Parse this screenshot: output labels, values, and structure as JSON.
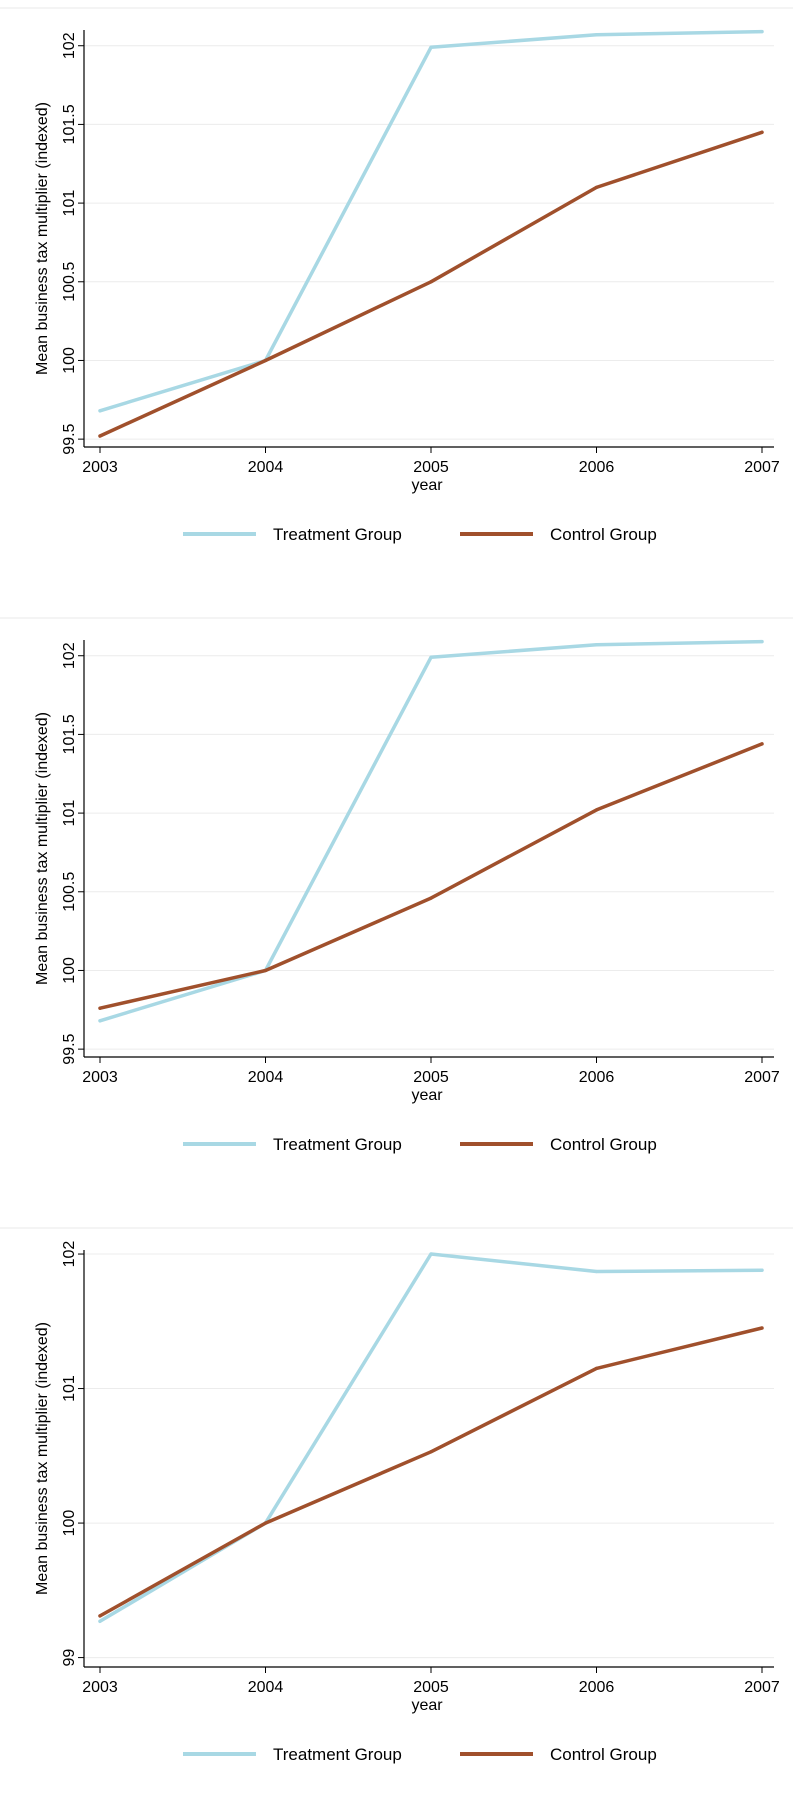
{
  "chart_data": [
    {
      "type": "line",
      "xlabel": "year",
      "ylabel": "Mean business tax multiplier (indexed)",
      "x": [
        2003,
        2004,
        2005,
        2006,
        2007
      ],
      "xticks": [
        "2003",
        "2004",
        "2005",
        "2006",
        "2007"
      ],
      "xlim": [
        2003,
        2007
      ],
      "yticks": [
        99.5,
        100,
        100.5,
        101,
        101.5,
        102
      ],
      "ytick_labels": [
        "99.5",
        "100",
        "100.5",
        "101",
        "101.5",
        "102"
      ],
      "ylim": [
        99.45,
        102.1
      ],
      "grid": true,
      "legend_position": "bottom",
      "series": [
        {
          "name": "Treatment Group",
          "color": "#a8d8e4",
          "values": [
            99.68,
            100.0,
            101.99,
            102.07,
            102.09
          ]
        },
        {
          "name": "Control Group",
          "color": "#a0502c",
          "values": [
            99.52,
            100.0,
            100.5,
            101.1,
            101.45
          ]
        }
      ]
    },
    {
      "type": "line",
      "xlabel": "year",
      "ylabel": "Mean business tax multiplier (indexed)",
      "x": [
        2003,
        2004,
        2005,
        2006,
        2007
      ],
      "xticks": [
        "2003",
        "2004",
        "2005",
        "2006",
        "2007"
      ],
      "xlim": [
        2003,
        2007
      ],
      "yticks": [
        99.5,
        100,
        100.5,
        101,
        101.5,
        102
      ],
      "ytick_labels": [
        "99.5",
        "100",
        "100.5",
        "101",
        "101.5",
        "102"
      ],
      "ylim": [
        99.45,
        102.1
      ],
      "grid": true,
      "legend_position": "bottom",
      "series": [
        {
          "name": "Treatment Group",
          "color": "#a8d8e4",
          "values": [
            99.68,
            100.0,
            101.99,
            102.07,
            102.09
          ]
        },
        {
          "name": "Control Group",
          "color": "#a0502c",
          "values": [
            99.76,
            100.0,
            100.46,
            101.02,
            101.44
          ]
        }
      ]
    },
    {
      "type": "line",
      "xlabel": "year",
      "ylabel": "Mean business tax multiplier (indexed)",
      "x": [
        2003,
        2004,
        2005,
        2006,
        2007
      ],
      "xticks": [
        "2003",
        "2004",
        "2005",
        "2006",
        "2007"
      ],
      "xlim": [
        2003,
        2007
      ],
      "yticks": [
        99,
        100,
        101,
        102
      ],
      "ytick_labels": [
        "99",
        "100",
        "101",
        "102"
      ],
      "ylim": [
        98.93,
        102.03
      ],
      "grid": true,
      "legend_position": "bottom",
      "series": [
        {
          "name": "Treatment Group",
          "color": "#a8d8e4",
          "values": [
            99.27,
            100.0,
            102.0,
            101.87,
            101.88
          ]
        },
        {
          "name": "Control Group",
          "color": "#a0502c",
          "values": [
            99.31,
            100.0,
            100.53,
            101.15,
            101.45
          ]
        }
      ]
    }
  ]
}
